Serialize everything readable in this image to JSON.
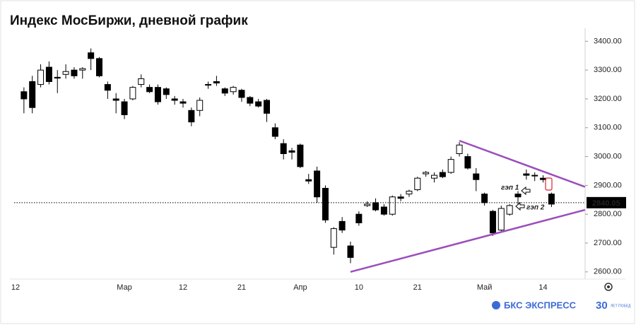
{
  "chart_data": {
    "type": "candlestick",
    "title": "Индекс МосБиржи, дневной график",
    "categories": [
      "12",
      null,
      null,
      null,
      null,
      null,
      null,
      null,
      null,
      null,
      null,
      null,
      null,
      "Мар",
      null,
      null,
      null,
      null,
      null,
      null,
      "12",
      null,
      null,
      null,
      null,
      null,
      null,
      "21",
      null,
      null,
      null,
      null,
      null,
      null,
      "Апр",
      null,
      null,
      null,
      null,
      null,
      null,
      "10",
      null,
      null,
      null,
      null,
      null,
      null,
      "21",
      null,
      null,
      null,
      null,
      null,
      null,
      null,
      "Май",
      null,
      null,
      null,
      null,
      null,
      null,
      "14",
      null
    ],
    "open": [
      null,
      3225,
      3260,
      3250,
      3310,
      3275,
      3285,
      3300,
      3300,
      3360,
      3340,
      3250,
      3200,
      3190,
      3200,
      3250,
      3240,
      3240,
      3235,
      3200,
      3190,
      3160,
      3160,
      3250,
      3260,
      3235,
      3225,
      3230,
      3205,
      3190,
      3195,
      3100,
      3045,
      3020,
      3040,
      2920,
      2950,
      2890,
      2685,
      2775,
      2690,
      2800,
      2830,
      2840,
      2825,
      2800,
      2860,
      2870,
      2885,
      2940,
      2925,
      2945,
      2945,
      3010,
      3000,
      2940,
      2870,
      2810,
      2745,
      2800,
      2870,
      2940,
      2935,
      2925,
      2870
    ],
    "high": [
      null,
      3240,
      3280,
      3320,
      3330,
      3300,
      3320,
      3310,
      3310,
      3375,
      3345,
      3260,
      3220,
      3200,
      3245,
      3285,
      3250,
      3250,
      3240,
      3210,
      3200,
      3170,
      3205,
      3260,
      3280,
      3240,
      3245,
      3235,
      3210,
      3200,
      3200,
      3115,
      3060,
      3030,
      3045,
      2940,
      2965,
      2900,
      2755,
      2790,
      2705,
      2810,
      2845,
      2855,
      2835,
      2865,
      2870,
      2885,
      2930,
      2950,
      2945,
      2955,
      3000,
      3050,
      3010,
      2960,
      2875,
      2815,
      2830,
      2835,
      2880,
      2955,
      2945,
      2935,
      2875
    ],
    "low": [
      null,
      3150,
      3150,
      3240,
      3250,
      3220,
      3270,
      3270,
      3270,
      3300,
      3275,
      3200,
      3150,
      3130,
      3195,
      3240,
      3220,
      3180,
      3200,
      3180,
      3170,
      3105,
      3140,
      3235,
      3245,
      3210,
      3215,
      3190,
      3175,
      3170,
      3120,
      3060,
      2990,
      2990,
      2960,
      2905,
      2840,
      2770,
      2660,
      2735,
      2630,
      2760,
      2825,
      2810,
      2795,
      2795,
      2845,
      2860,
      2880,
      2930,
      2910,
      2925,
      2940,
      3000,
      2955,
      2880,
      2830,
      2725,
      2740,
      2795,
      2830,
      2920,
      2915,
      2910,
      2825
    ],
    "close": [
      null,
      3200,
      3170,
      3300,
      3260,
      3272,
      3295,
      3280,
      3305,
      3340,
      3280,
      3230,
      3195,
      3145,
      3240,
      3270,
      3225,
      3190,
      3215,
      3195,
      3185,
      3120,
      3195,
      3248,
      3255,
      3220,
      3240,
      3205,
      3185,
      3175,
      3150,
      3070,
      3010,
      3015,
      2965,
      2915,
      2860,
      2780,
      2750,
      2745,
      2650,
      2770,
      2835,
      2815,
      2800,
      2860,
      2855,
      2880,
      2925,
      2945,
      2935,
      2930,
      2990,
      3040,
      2960,
      2920,
      2840,
      2735,
      2820,
      2830,
      2860,
      2935,
      2933,
      2920,
      2835
    ],
    "up_color": "#ffffff",
    "down_color": "#000000",
    "ylim": [
      2575,
      3445
    ],
    "yticks": [
      {
        "value": 2600,
        "label": "2600.00"
      },
      {
        "value": 2700,
        "label": "2700.00"
      },
      {
        "value": 2800,
        "label": "2800.00"
      },
      {
        "value": 2900,
        "label": "2900.00"
      },
      {
        "value": 3000,
        "label": "3000.00"
      },
      {
        "value": 3100,
        "label": "3100.00"
      },
      {
        "value": 3200,
        "label": "3200.00"
      },
      {
        "value": 3300,
        "label": "3300.00"
      },
      {
        "value": 3400,
        "label": "3400.00"
      }
    ],
    "last_price": 2840.05,
    "trendlines": [
      {
        "color": "#9b4dbb",
        "x": [
          53,
          68
        ],
        "values": [
          3055,
          2895
        ]
      },
      {
        "color": "#9b4dbb",
        "x": [
          40,
          68
        ],
        "values": [
          2600,
          2815
        ]
      }
    ],
    "annotations": [
      {
        "text": "гэп 1"
      },
      {
        "text": "гэп 2"
      }
    ],
    "brand": "БКС ЭКСПРЕСС",
    "brand_badge": "30",
    "brand_tagline": "ЛЕТ ПОБЕД"
  }
}
